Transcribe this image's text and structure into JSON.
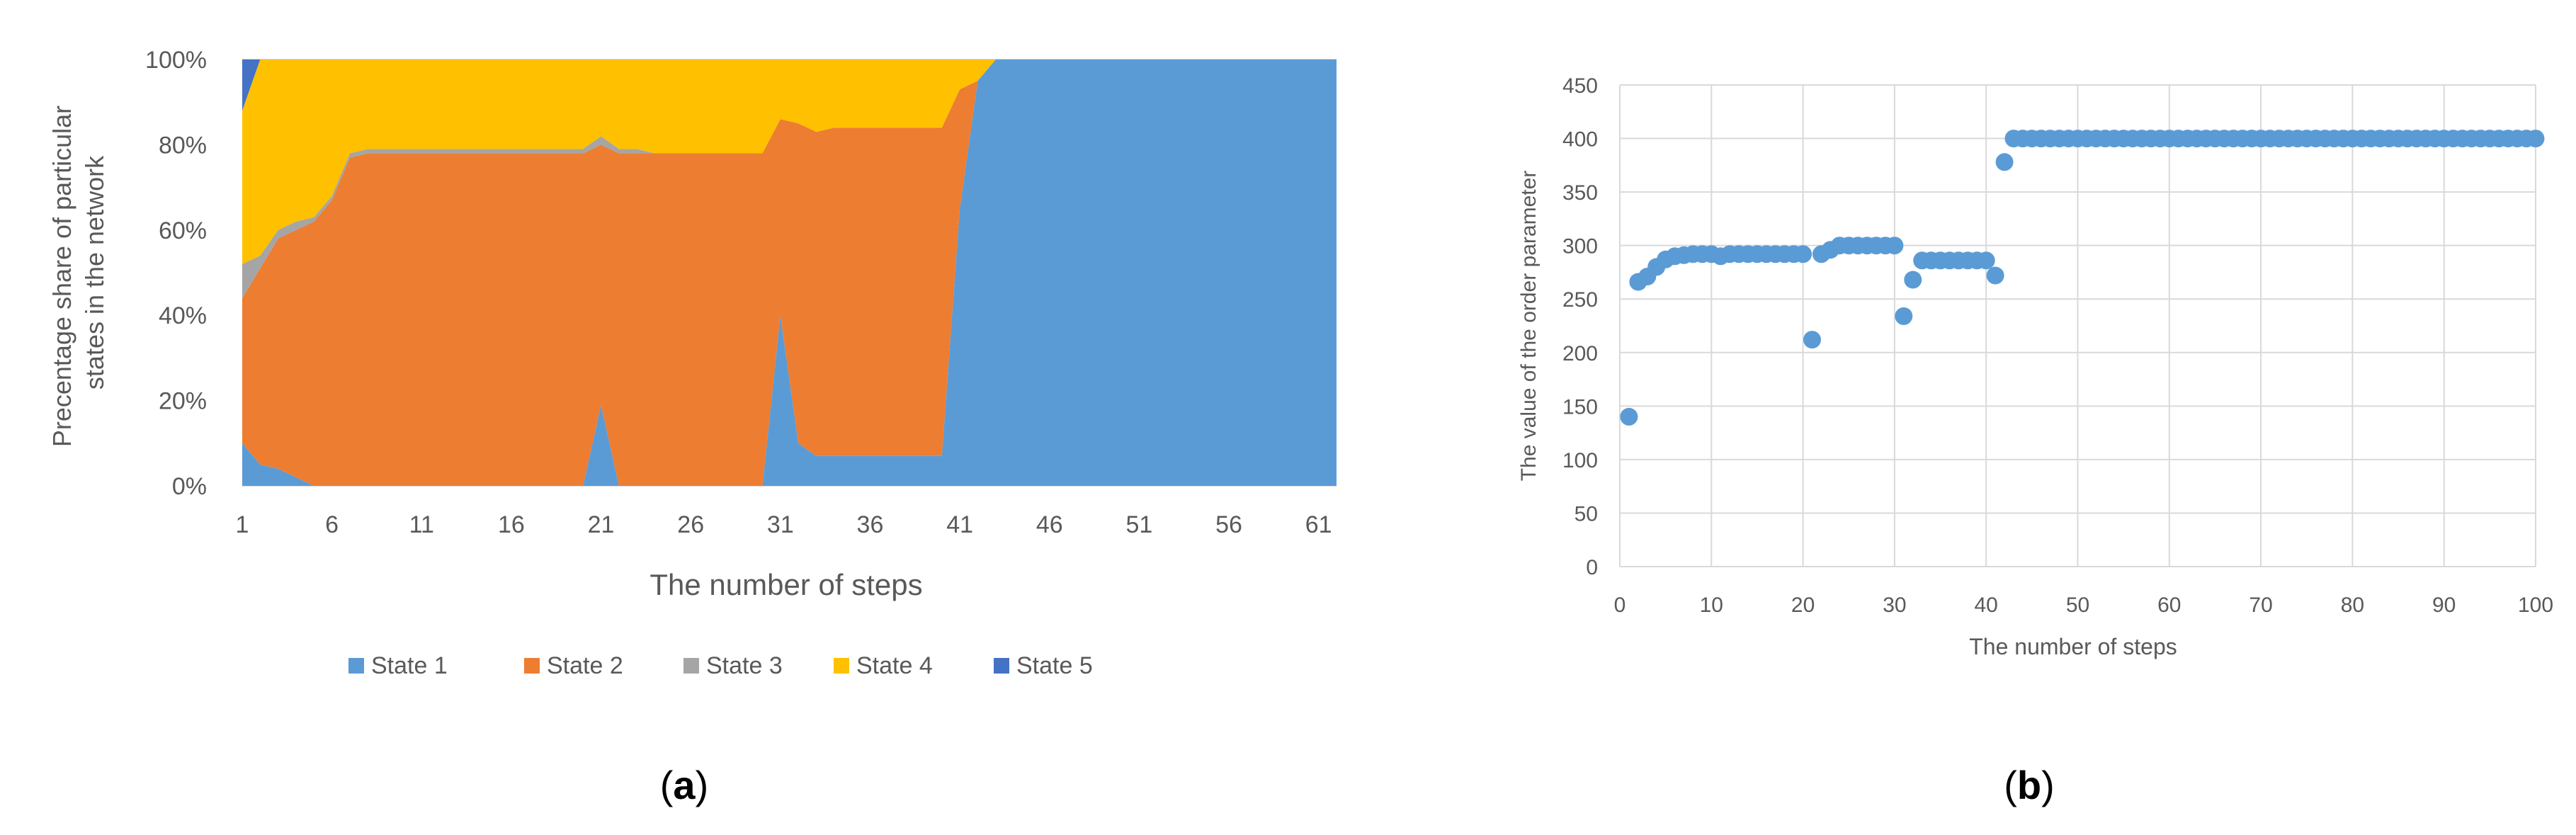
{
  "chart_data": [
    {
      "type": "area",
      "stacked": true,
      "percent": true,
      "panel_label": "(a)",
      "panel_letter": "a",
      "xlabel": "The number of steps",
      "ylabel": "Precentage share  of particular states in the network",
      "ylabel_lines": [
        "Precentage share  of particular",
        "states in the network"
      ],
      "x_ticks": [
        "1",
        "6",
        "11",
        "16",
        "21",
        "26",
        "31",
        "36",
        "41",
        "46",
        "51",
        "56",
        "61"
      ],
      "y_ticks": [
        "0%",
        "20%",
        "40%",
        "60%",
        "80%",
        "100%"
      ],
      "ylim": [
        0,
        100
      ],
      "legend_position": "bottom",
      "grid": "horizontal",
      "colors": {
        "State 1": "#5b9bd5",
        "State 2": "#ed7d31",
        "State 3": "#a5a5a5",
        "State 4": "#ffc000",
        "State 5": "#4472c4"
      },
      "x": [
        1,
        2,
        3,
        4,
        5,
        6,
        7,
        8,
        9,
        10,
        11,
        12,
        13,
        14,
        15,
        16,
        17,
        18,
        19,
        20,
        21,
        22,
        23,
        24,
        25,
        26,
        27,
        28,
        29,
        30,
        31,
        32,
        33,
        34,
        35,
        36,
        37,
        38,
        39,
        40,
        41,
        42,
        43,
        44,
        45,
        46,
        47,
        48,
        49,
        50,
        51,
        52,
        53,
        54,
        55,
        56,
        57,
        58,
        59,
        60,
        61,
        62
      ],
      "series": [
        {
          "name": "State 1",
          "values": [
            10,
            5,
            4,
            2,
            0,
            0,
            0,
            0,
            0,
            0,
            0,
            0,
            0,
            0,
            0,
            0,
            0,
            0,
            0,
            0,
            19,
            0,
            0,
            0,
            0,
            0,
            0,
            0,
            0,
            0,
            40,
            10,
            7,
            7,
            7,
            7,
            7,
            7,
            7,
            7,
            65,
            95,
            100,
            100,
            100,
            100,
            100,
            100,
            100,
            100,
            100,
            100,
            100,
            100,
            100,
            100,
            100,
            100,
            100,
            100,
            100,
            100
          ]
        },
        {
          "name": "State 2",
          "values": [
            34,
            46,
            54,
            58,
            62,
            67,
            77,
            78,
            78,
            78,
            78,
            78,
            78,
            78,
            78,
            78,
            78,
            78,
            78,
            78,
            61,
            78,
            78,
            78,
            78,
            78,
            78,
            78,
            78,
            78,
            46,
            75,
            76,
            77,
            77,
            77,
            77,
            77,
            77,
            77,
            28,
            0,
            0,
            0,
            0,
            0,
            0,
            0,
            0,
            0,
            0,
            0,
            0,
            0,
            0,
            0,
            0,
            0,
            0,
            0,
            0,
            0
          ]
        },
        {
          "name": "State 3",
          "values": [
            8,
            3,
            2,
            2,
            1,
            1,
            1,
            1,
            1,
            1,
            1,
            1,
            1,
            1,
            1,
            1,
            1,
            1,
            1,
            1,
            2,
            1,
            1,
            0,
            0,
            0,
            0,
            0,
            0,
            0,
            0,
            0,
            0,
            0,
            0,
            0,
            0,
            0,
            0,
            0,
            0,
            0,
            0,
            0,
            0,
            0,
            0,
            0,
            0,
            0,
            0,
            0,
            0,
            0,
            0,
            0,
            0,
            0,
            0,
            0,
            0,
            0
          ]
        },
        {
          "name": "State 4",
          "values": [
            36,
            46,
            40,
            38,
            37,
            32,
            22,
            21,
            21,
            21,
            21,
            21,
            21,
            21,
            21,
            21,
            21,
            21,
            21,
            21,
            18,
            21,
            21,
            22,
            22,
            22,
            22,
            22,
            22,
            22,
            14,
            15,
            17,
            16,
            16,
            16,
            16,
            16,
            16,
            16,
            7,
            5,
            0,
            0,
            0,
            0,
            0,
            0,
            0,
            0,
            0,
            0,
            0,
            0,
            0,
            0,
            0,
            0,
            0,
            0,
            0,
            0
          ]
        },
        {
          "name": "State 5",
          "values": [
            12,
            0,
            0,
            0,
            0,
            0,
            0,
            0,
            0,
            0,
            0,
            0,
            0,
            0,
            0,
            0,
            0,
            0,
            0,
            0,
            0,
            0,
            0,
            0,
            0,
            0,
            0,
            0,
            0,
            0,
            0,
            0,
            0,
            0,
            0,
            0,
            0,
            0,
            0,
            0,
            0,
            0,
            0,
            0,
            0,
            0,
            0,
            0,
            0,
            0,
            0,
            0,
            0,
            0,
            0,
            0,
            0,
            0,
            0,
            0,
            0,
            0
          ]
        }
      ]
    },
    {
      "type": "scatter",
      "panel_label": "(b)",
      "panel_letter": "b",
      "xlabel": "The number of steps",
      "ylabel": "The value of the order parameter",
      "x_ticks": [
        "0",
        "10",
        "20",
        "30",
        "40",
        "50",
        "60",
        "70",
        "80",
        "90",
        "100"
      ],
      "y_ticks": [
        "0",
        "50",
        "100",
        "150",
        "200",
        "250",
        "300",
        "350",
        "400",
        "450"
      ],
      "xlim": [
        0,
        100
      ],
      "ylim": [
        0,
        450
      ],
      "grid": "both",
      "colors": {
        "marker": "#5b9bd5"
      },
      "points": [
        [
          1,
          140
        ],
        [
          2,
          266
        ],
        [
          3,
          271
        ],
        [
          4,
          280
        ],
        [
          5,
          287
        ],
        [
          6,
          290
        ],
        [
          7,
          291
        ],
        [
          8,
          292
        ],
        [
          9,
          292
        ],
        [
          10,
          292
        ],
        [
          11,
          290
        ],
        [
          12,
          292
        ],
        [
          13,
          292
        ],
        [
          14,
          292
        ],
        [
          15,
          292
        ],
        [
          16,
          292
        ],
        [
          17,
          292
        ],
        [
          18,
          292
        ],
        [
          19,
          292
        ],
        [
          20,
          292
        ],
        [
          21,
          212
        ],
        [
          22,
          292
        ],
        [
          23,
          296
        ],
        [
          24,
          300
        ],
        [
          25,
          300
        ],
        [
          26,
          300
        ],
        [
          27,
          300
        ],
        [
          28,
          300
        ],
        [
          29,
          300
        ],
        [
          30,
          300
        ],
        [
          31,
          234
        ],
        [
          32,
          268
        ],
        [
          33,
          286
        ],
        [
          34,
          286
        ],
        [
          35,
          286
        ],
        [
          36,
          286
        ],
        [
          37,
          286
        ],
        [
          38,
          286
        ],
        [
          39,
          286
        ],
        [
          40,
          286
        ],
        [
          41,
          272
        ],
        [
          42,
          378
        ],
        [
          43,
          400
        ],
        [
          44,
          400
        ],
        [
          45,
          400
        ],
        [
          46,
          400
        ],
        [
          47,
          400
        ],
        [
          48,
          400
        ],
        [
          49,
          400
        ],
        [
          50,
          400
        ],
        [
          51,
          400
        ],
        [
          52,
          400
        ],
        [
          53,
          400
        ],
        [
          54,
          400
        ],
        [
          55,
          400
        ],
        [
          56,
          400
        ],
        [
          57,
          400
        ],
        [
          58,
          400
        ],
        [
          59,
          400
        ],
        [
          60,
          400
        ],
        [
          61,
          400
        ],
        [
          62,
          400
        ],
        [
          63,
          400
        ],
        [
          64,
          400
        ],
        [
          65,
          400
        ],
        [
          66,
          400
        ],
        [
          67,
          400
        ],
        [
          68,
          400
        ],
        [
          69,
          400
        ],
        [
          70,
          400
        ],
        [
          71,
          400
        ],
        [
          72,
          400
        ],
        [
          73,
          400
        ],
        [
          74,
          400
        ],
        [
          75,
          400
        ],
        [
          76,
          400
        ],
        [
          77,
          400
        ],
        [
          78,
          400
        ],
        [
          79,
          400
        ],
        [
          80,
          400
        ],
        [
          81,
          400
        ],
        [
          82,
          400
        ],
        [
          83,
          400
        ],
        [
          84,
          400
        ],
        [
          85,
          400
        ],
        [
          86,
          400
        ],
        [
          87,
          400
        ],
        [
          88,
          400
        ],
        [
          89,
          400
        ],
        [
          90,
          400
        ],
        [
          91,
          400
        ],
        [
          92,
          400
        ],
        [
          93,
          400
        ],
        [
          94,
          400
        ],
        [
          95,
          400
        ],
        [
          96,
          400
        ],
        [
          97,
          400
        ],
        [
          98,
          400
        ],
        [
          99,
          400
        ],
        [
          100,
          400
        ]
      ]
    }
  ]
}
